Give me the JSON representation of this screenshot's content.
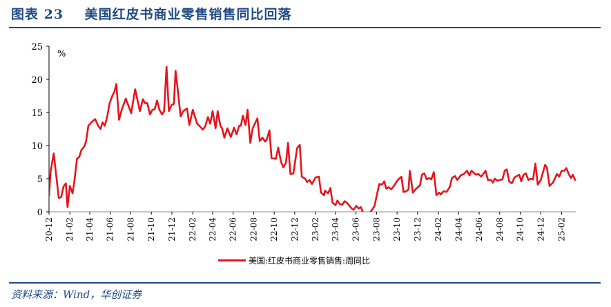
{
  "title": "图表 23    美国红皮书商业零售销售同比回落",
  "source": "资料来源：Wind，华创证券",
  "colors": {
    "series": "#e5141c",
    "title": "#1f4a85",
    "axis": "#000000"
  },
  "chart_data": {
    "type": "line",
    "title": "",
    "unit_label": "%",
    "ylim": [
      0,
      25
    ],
    "yticks": [
      0,
      5,
      10,
      15,
      20,
      25
    ],
    "xlim": [
      "2020-12-01",
      "2025-03-15"
    ],
    "xticks": [
      "20-12",
      "21-02",
      "21-04",
      "21-06",
      "21-08",
      "21-10",
      "21-12",
      "22-02",
      "22-04",
      "22-06",
      "22-08",
      "22-10",
      "22-12",
      "23-02",
      "23-04",
      "23-06",
      "23-08",
      "23-10",
      "23-12",
      "24-02",
      "24-04",
      "24-06",
      "24-08",
      "24-10",
      "24-12",
      "25-02"
    ],
    "grid": false,
    "legend_position": "bottom",
    "series": [
      {
        "name": "美国:红皮书商业零售销售:周同比",
        "points": [
          [
            "2020-12-01",
            2.4
          ],
          [
            "2020-12-06",
            6.2
          ],
          [
            "2020-12-15",
            8.8
          ],
          [
            "2020-12-30",
            2.1
          ],
          [
            "2021-01-06",
            2.2
          ],
          [
            "2021-01-13",
            3.8
          ],
          [
            "2021-01-20",
            4.3
          ],
          [
            "2021-01-25",
            0.7
          ],
          [
            "2021-02-01",
            3.9
          ],
          [
            "2021-02-09",
            2.8
          ],
          [
            "2021-02-14",
            4.5
          ],
          [
            "2021-02-22",
            8.0
          ],
          [
            "2021-03-01",
            8.3
          ],
          [
            "2021-03-07",
            9.3
          ],
          [
            "2021-03-16",
            9.9
          ],
          [
            "2021-03-21",
            10.6
          ],
          [
            "2021-03-28",
            13.0
          ],
          [
            "2021-04-06",
            13.5
          ],
          [
            "2021-04-17",
            14.0
          ],
          [
            "2021-04-26",
            13.0
          ],
          [
            "2021-05-03",
            12.5
          ],
          [
            "2021-05-09",
            13.5
          ],
          [
            "2021-05-16",
            13.0
          ],
          [
            "2021-05-23",
            14.4
          ],
          [
            "2021-05-30",
            16.4
          ],
          [
            "2021-06-08",
            17.6
          ],
          [
            "2021-06-13",
            18.1
          ],
          [
            "2021-06-19",
            19.3
          ],
          [
            "2021-06-27",
            13.9
          ],
          [
            "2021-07-05",
            15.4
          ],
          [
            "2021-07-17",
            17.1
          ],
          [
            "2021-08-02",
            14.9
          ],
          [
            "2021-08-14",
            18.5
          ],
          [
            "2021-08-28",
            15.2
          ],
          [
            "2021-09-06",
            17.0
          ],
          [
            "2021-09-12",
            16.4
          ],
          [
            "2021-09-19",
            16.4
          ],
          [
            "2021-09-27",
            14.7
          ],
          [
            "2021-10-04",
            15.4
          ],
          [
            "2021-10-11",
            15.5
          ],
          [
            "2021-10-18",
            16.8
          ],
          [
            "2021-10-25",
            15.4
          ],
          [
            "2021-11-02",
            14.7
          ],
          [
            "2021-11-08",
            15.2
          ],
          [
            "2021-11-15",
            21.9
          ],
          [
            "2021-11-22",
            15.2
          ],
          [
            "2021-11-30",
            16.1
          ],
          [
            "2021-12-07",
            16.3
          ],
          [
            "2021-12-12",
            21.3
          ],
          [
            "2021-12-18",
            18.7
          ],
          [
            "2021-12-27",
            14.4
          ],
          [
            "2022-01-04",
            15.2
          ],
          [
            "2022-01-15",
            15.6
          ],
          [
            "2022-01-22",
            13.1
          ],
          [
            "2022-02-01",
            15.4
          ],
          [
            "2022-02-14",
            13.3
          ],
          [
            "2022-02-24",
            12.8
          ],
          [
            "2022-03-03",
            12.4
          ],
          [
            "2022-03-10",
            12.9
          ],
          [
            "2022-03-18",
            14.3
          ],
          [
            "2022-03-25",
            13.3
          ],
          [
            "2022-04-01",
            15.2
          ],
          [
            "2022-04-10",
            12.6
          ],
          [
            "2022-04-16",
            15.2
          ],
          [
            "2022-04-24",
            13.0
          ],
          [
            "2022-04-29",
            12.6
          ],
          [
            "2022-05-06",
            11.2
          ],
          [
            "2022-05-15",
            12.6
          ],
          [
            "2022-05-25",
            11.3
          ],
          [
            "2022-06-04",
            12.7
          ],
          [
            "2022-06-11",
            11.7
          ],
          [
            "2022-06-19",
            13.0
          ],
          [
            "2022-06-24",
            13.0
          ],
          [
            "2022-06-30",
            14.5
          ],
          [
            "2022-07-08",
            13.1
          ],
          [
            "2022-07-14",
            15.4
          ],
          [
            "2022-07-22",
            10.4
          ],
          [
            "2022-07-29",
            12.6
          ],
          [
            "2022-08-12",
            14.1
          ],
          [
            "2022-08-19",
            10.7
          ],
          [
            "2022-08-27",
            11.2
          ],
          [
            "2022-09-04",
            10.6
          ],
          [
            "2022-09-09",
            10.9
          ],
          [
            "2022-09-17",
            12.3
          ],
          [
            "2022-09-23",
            8.1
          ],
          [
            "2022-10-06",
            8.0
          ],
          [
            "2022-10-13",
            9.7
          ],
          [
            "2022-10-21",
            7.6
          ],
          [
            "2022-10-28",
            6.7
          ],
          [
            "2022-11-05",
            7.4
          ],
          [
            "2022-11-11",
            10.4
          ],
          [
            "2022-11-18",
            5.7
          ],
          [
            "2022-11-27",
            5.8
          ],
          [
            "2022-12-08",
            9.6
          ],
          [
            "2022-12-16",
            10.1
          ],
          [
            "2022-12-22",
            5.3
          ],
          [
            "2023-01-01",
            5.0
          ],
          [
            "2023-01-07",
            4.5
          ],
          [
            "2023-01-14",
            4.8
          ],
          [
            "2023-01-21",
            4.2
          ],
          [
            "2023-02-01",
            5.2
          ],
          [
            "2023-02-11",
            5.3
          ],
          [
            "2023-02-17",
            2.9
          ],
          [
            "2023-02-26",
            2.5
          ],
          [
            "2023-03-01",
            3.2
          ],
          [
            "2023-03-10",
            2.8
          ],
          [
            "2023-03-17",
            3.6
          ],
          [
            "2023-03-23",
            1.4
          ],
          [
            "2023-04-01",
            1.0
          ],
          [
            "2023-04-07",
            1.7
          ],
          [
            "2023-04-15",
            1.1
          ],
          [
            "2023-04-22",
            1.1
          ],
          [
            "2023-04-28",
            1.6
          ],
          [
            "2023-05-06",
            1.3
          ],
          [
            "2023-05-19",
            0.5
          ],
          [
            "2023-05-25",
            0.3
          ],
          [
            "2023-06-02",
            0.9
          ],
          [
            "2023-06-09",
            0.5
          ],
          [
            "2023-06-16",
            0.7
          ],
          [
            "2023-06-22",
            -0.2
          ],
          [
            "2023-07-11",
            -0.2
          ],
          [
            "2023-07-19",
            0.3
          ],
          [
            "2023-07-26",
            0.9
          ],
          [
            "2023-08-03",
            2.8
          ],
          [
            "2023-08-09",
            4.2
          ],
          [
            "2023-08-17",
            4.1
          ],
          [
            "2023-08-24",
            4.6
          ],
          [
            "2023-08-30",
            3.5
          ],
          [
            "2023-09-06",
            3.7
          ],
          [
            "2023-09-14",
            3.4
          ],
          [
            "2023-09-23",
            4.0
          ],
          [
            "2023-10-03",
            4.8
          ],
          [
            "2023-10-14",
            5.3
          ],
          [
            "2023-10-20",
            3.0
          ],
          [
            "2023-10-29",
            3.1
          ],
          [
            "2023-11-04",
            3.4
          ],
          [
            "2023-11-08",
            6.2
          ],
          [
            "2023-11-17",
            2.9
          ],
          [
            "2023-11-27",
            3.5
          ],
          [
            "2023-12-08",
            4.0
          ],
          [
            "2023-12-14",
            5.6
          ],
          [
            "2023-12-21",
            5.8
          ],
          [
            "2023-12-28",
            4.9
          ],
          [
            "2024-01-05",
            5.1
          ],
          [
            "2024-01-11",
            4.9
          ],
          [
            "2024-01-18",
            6.0
          ],
          [
            "2024-01-26",
            2.5
          ],
          [
            "2024-02-03",
            2.9
          ],
          [
            "2024-02-08",
            2.6
          ],
          [
            "2024-02-16",
            3.1
          ],
          [
            "2024-02-25",
            3.0
          ],
          [
            "2024-03-06",
            3.8
          ],
          [
            "2024-03-12",
            5.1
          ],
          [
            "2024-03-21",
            5.4
          ],
          [
            "2024-03-28",
            4.8
          ],
          [
            "2024-04-07",
            5.5
          ],
          [
            "2024-04-16",
            5.7
          ],
          [
            "2024-04-26",
            6.2
          ],
          [
            "2024-05-03",
            5.5
          ],
          [
            "2024-05-09",
            6.2
          ],
          [
            "2024-05-22",
            5.6
          ],
          [
            "2024-05-30",
            5.7
          ],
          [
            "2024-06-07",
            5.3
          ],
          [
            "2024-06-20",
            6.2
          ],
          [
            "2024-06-27",
            4.8
          ],
          [
            "2024-07-06",
            4.8
          ],
          [
            "2024-07-12",
            4.4
          ],
          [
            "2024-07-17",
            5.0
          ],
          [
            "2024-07-25",
            4.7
          ],
          [
            "2024-08-09",
            4.9
          ],
          [
            "2024-08-16",
            6.2
          ],
          [
            "2024-08-22",
            6.4
          ],
          [
            "2024-08-29",
            4.6
          ],
          [
            "2024-09-06",
            4.3
          ],
          [
            "2024-09-14",
            5.2
          ],
          [
            "2024-09-28",
            5.6
          ],
          [
            "2024-10-04",
            4.6
          ],
          [
            "2024-10-11",
            5.6
          ],
          [
            "2024-10-18",
            5.8
          ],
          [
            "2024-10-25",
            4.8
          ],
          [
            "2024-11-01",
            5.0
          ],
          [
            "2024-11-08",
            4.9
          ],
          [
            "2024-11-15",
            7.3
          ],
          [
            "2024-11-22",
            4.1
          ],
          [
            "2024-12-01",
            4.8
          ],
          [
            "2024-12-14",
            7.1
          ],
          [
            "2024-12-19",
            6.7
          ],
          [
            "2024-12-27",
            3.9
          ],
          [
            "2025-01-06",
            4.4
          ],
          [
            "2025-01-18",
            5.7
          ],
          [
            "2025-01-25",
            5.3
          ],
          [
            "2025-02-01",
            6.2
          ],
          [
            "2025-02-09",
            6.2
          ],
          [
            "2025-02-15",
            6.6
          ],
          [
            "2025-02-23",
            5.6
          ],
          [
            "2025-03-01",
            5.1
          ],
          [
            "2025-03-06",
            5.6
          ],
          [
            "2025-03-14",
            4.7
          ]
        ]
      }
    ]
  }
}
